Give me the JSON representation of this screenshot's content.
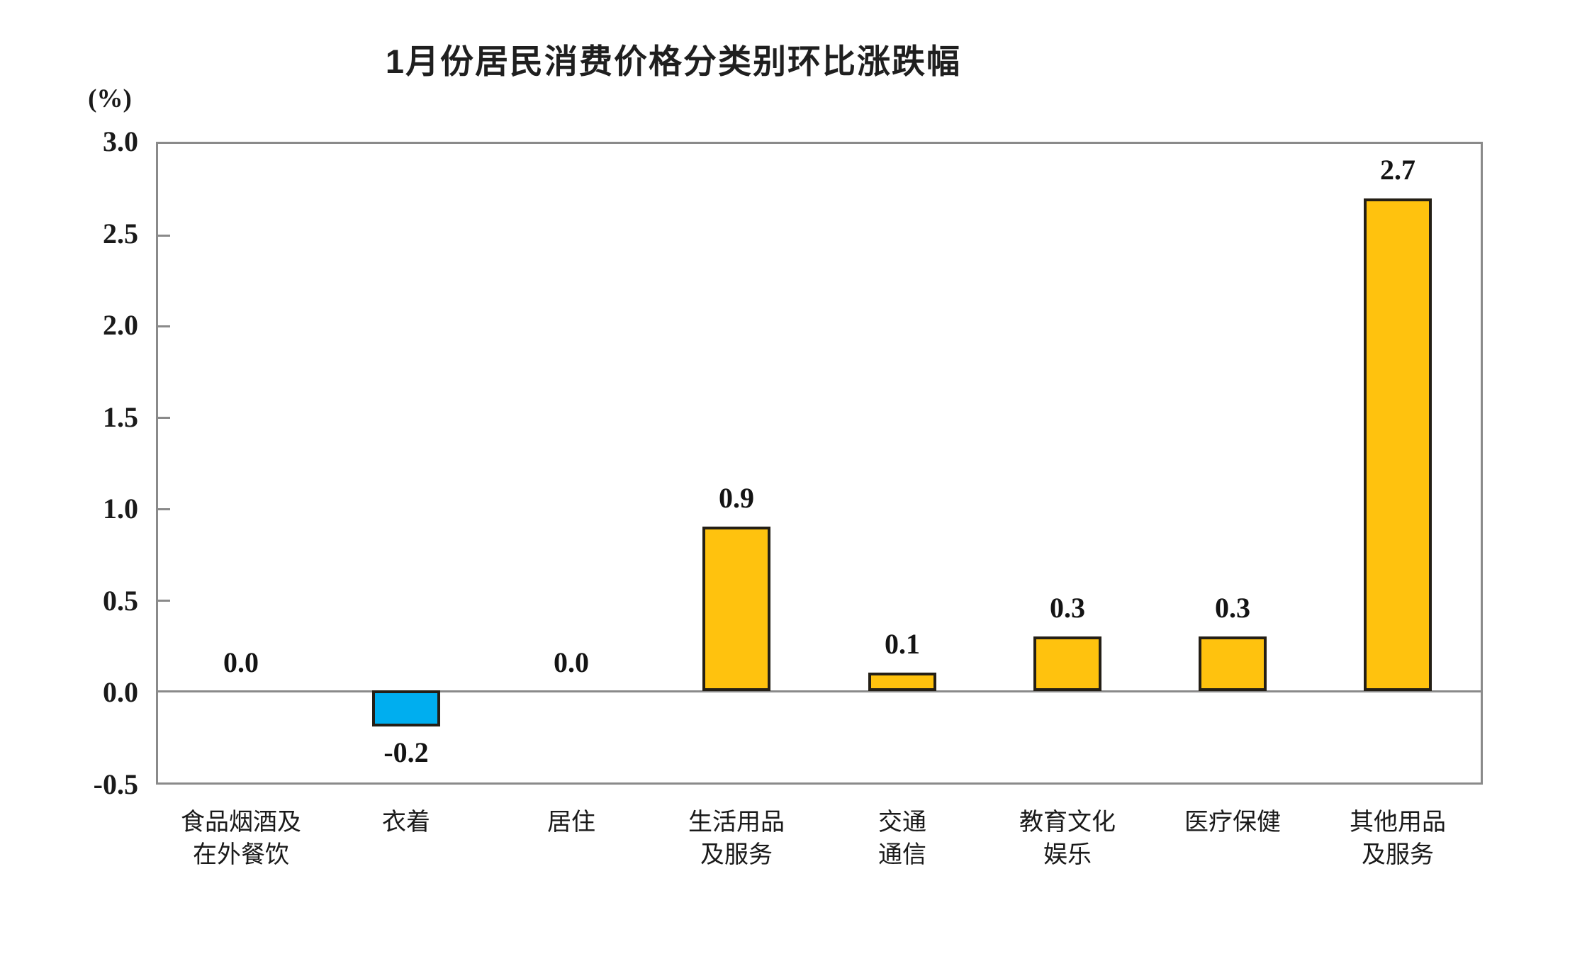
{
  "title": "1月份居民消费价格分类别环比涨跌幅",
  "colors": {
    "positive_bar": "#FFC20E",
    "negative_bar": "#00AEEF",
    "bar_border": "#241F16",
    "axis_line": "#8A8A8A",
    "text": "#1A1A1A"
  },
  "chart_data": {
    "type": "bar",
    "title": "1月份居民消费价格分类别环比涨跌幅",
    "xlabel": "",
    "ylabel": "(%)",
    "ylim": [
      -0.5,
      3.0
    ],
    "ytick_step": 0.5,
    "ytick_labels": [
      "3.0",
      "2.5",
      "2.0",
      "1.5",
      "1.0",
      "0.5",
      "0.0",
      "-0.5"
    ],
    "grid": false,
    "legend": "none",
    "categories": [
      "食品烟酒及\n在外餐饮",
      "衣着",
      "居住",
      "生活用品\n及服务",
      "交通\n通信",
      "教育文化\n娱乐",
      "医疗保健",
      "其他用品\n及服务"
    ],
    "values": [
      0.0,
      -0.2,
      0.0,
      0.9,
      0.1,
      0.3,
      0.3,
      2.7
    ],
    "value_labels": [
      "0.0",
      "-0.2",
      "0.0",
      "0.9",
      "0.1",
      "0.3",
      "0.3",
      "2.7"
    ]
  }
}
